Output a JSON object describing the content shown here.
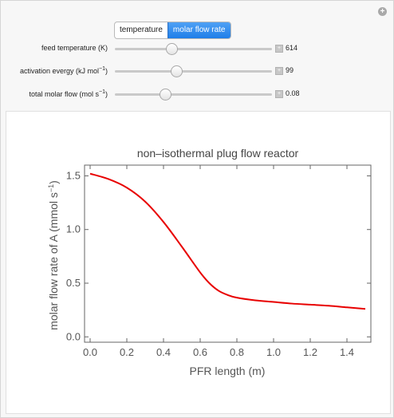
{
  "tabs": [
    {
      "label": "temperature",
      "active": false
    },
    {
      "label": "molar flow rate",
      "active": true
    }
  ],
  "controls": [
    {
      "label": "feed temperature (K)",
      "value": "614",
      "fraction": 0.36
    },
    {
      "label_main": "activation evergy (kJ mol",
      "label_sup": "−1",
      "label_end": ")",
      "value": "99",
      "fraction": 0.39
    },
    {
      "label_main": "total molar flow (mol s",
      "label_sup": "−1",
      "label_end": ")",
      "value": "0.08",
      "fraction": 0.32
    }
  ],
  "colors": {
    "curve": "#e80000",
    "tab_active": "#2a86ee"
  },
  "chart_data": {
    "type": "line",
    "title": "non–isothermal plug flow reactor",
    "xlabel": "PFR length (m)",
    "ylabel_main": "molar flow rate of A (mmol s",
    "ylabel_sup": "−1",
    "ylabel_end": ")",
    "xlim": [
      0,
      1.5
    ],
    "ylim": [
      -0.05,
      1.6
    ],
    "xticks": [
      "0.0",
      "0.2",
      "0.4",
      "0.6",
      "0.8",
      "1.0",
      "1.2",
      "1.4"
    ],
    "yticks": [
      "0.0",
      "0.5",
      "1.0",
      "1.5"
    ],
    "series": [
      {
        "x": [
          0,
          0.1,
          0.2,
          0.3,
          0.4,
          0.5,
          0.6,
          0.65,
          0.7,
          0.75,
          0.8,
          0.9,
          1.0,
          1.1,
          1.2,
          1.3,
          1.4,
          1.5
        ],
        "y": [
          1.52,
          1.47,
          1.39,
          1.26,
          1.07,
          0.84,
          0.6,
          0.5,
          0.43,
          0.39,
          0.365,
          0.34,
          0.325,
          0.31,
          0.3,
          0.29,
          0.275,
          0.26
        ]
      }
    ]
  }
}
